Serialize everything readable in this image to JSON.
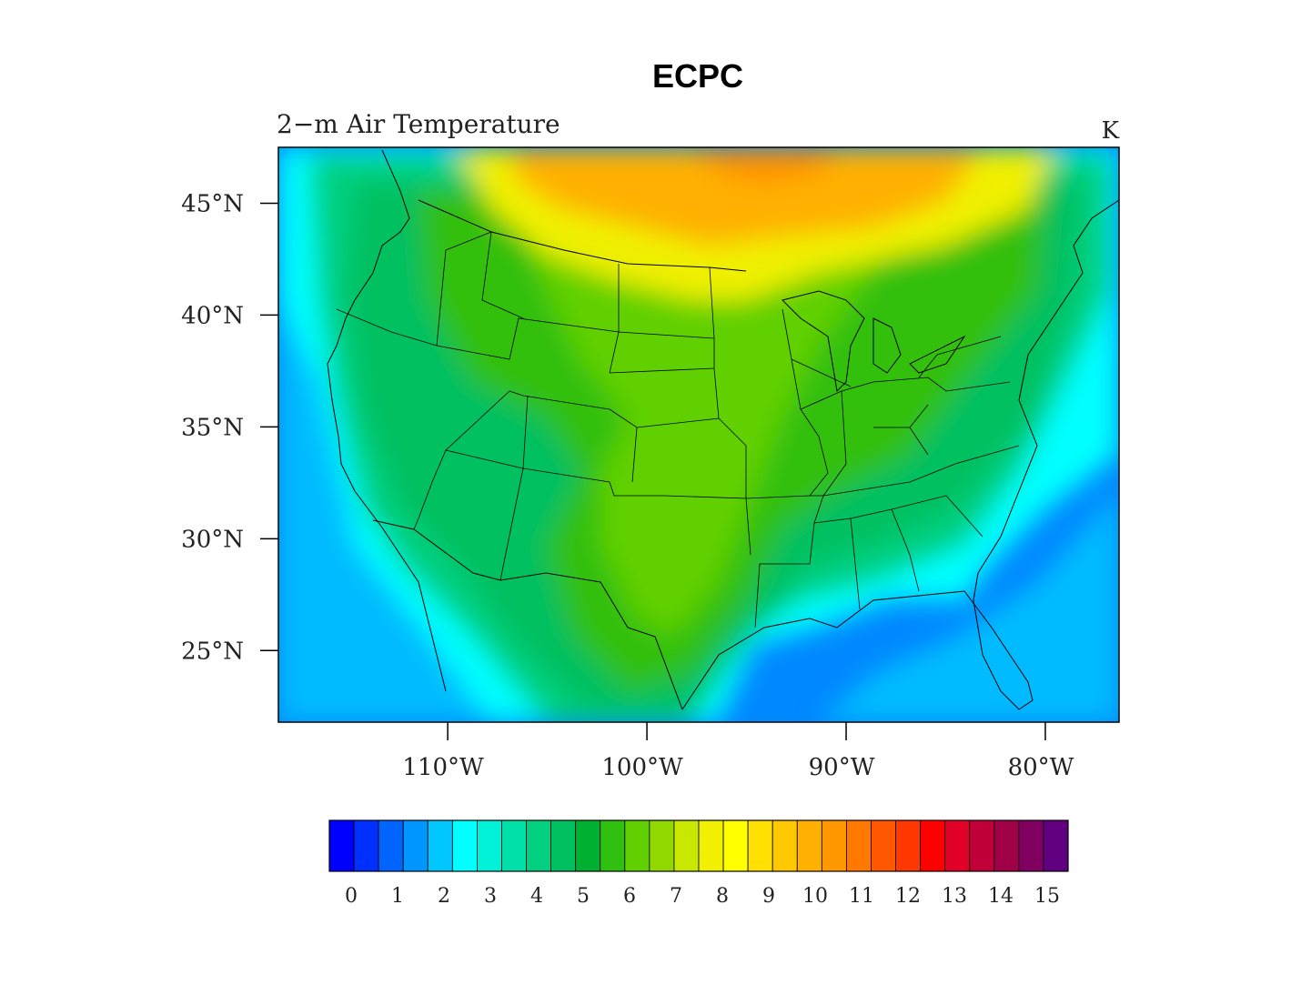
{
  "title": "ECPC",
  "subtitle_left": "2−m Air Temperature",
  "subtitle_right": "K",
  "lat_labels": [
    "45°N",
    "40°N",
    "35°N",
    "30°N",
    "25°N"
  ],
  "lon_labels": [
    "110°W",
    "100°W",
    "90°W",
    "80°W"
  ],
  "map_extent": {
    "lon_min": -118.5,
    "lon_max": -76.3,
    "lat_min": 21.8,
    "lat_max": 47.5
  },
  "colorbar": {
    "labels": [
      "0",
      "1",
      "2",
      "3",
      "4",
      "5",
      "6",
      "7",
      "8",
      "9",
      "10",
      "11",
      "12",
      "13",
      "14",
      "15"
    ],
    "colors": [
      "#0000ff",
      "#0030ff",
      "#0064ff",
      "#0096ff",
      "#00c8ff",
      "#00ffff",
      "#00f0d8",
      "#00e0a8",
      "#00d080",
      "#00c060",
      "#00b030",
      "#30c010",
      "#60d000",
      "#90d800",
      "#c8e800",
      "#f0f000",
      "#ffff00",
      "#ffe000",
      "#ffc800",
      "#ffb000",
      "#ff9800",
      "#ff7800",
      "#ff5800",
      "#ff3800",
      "#ff0000",
      "#e00028",
      "#c00038",
      "#a00048",
      "#800060",
      "#600080"
    ]
  },
  "field_colors": {
    "ocean_deep": "#0088ff",
    "ocean": "#00bbff",
    "coast": "#00ffff",
    "land_low": "#00d080",
    "land": "#00c060",
    "land_mid": "#30c010",
    "land_warm": "#60d000",
    "north_yellow": "#f0f000",
    "north_orange": "#ffb000",
    "north_hot": "#ff9000"
  }
}
